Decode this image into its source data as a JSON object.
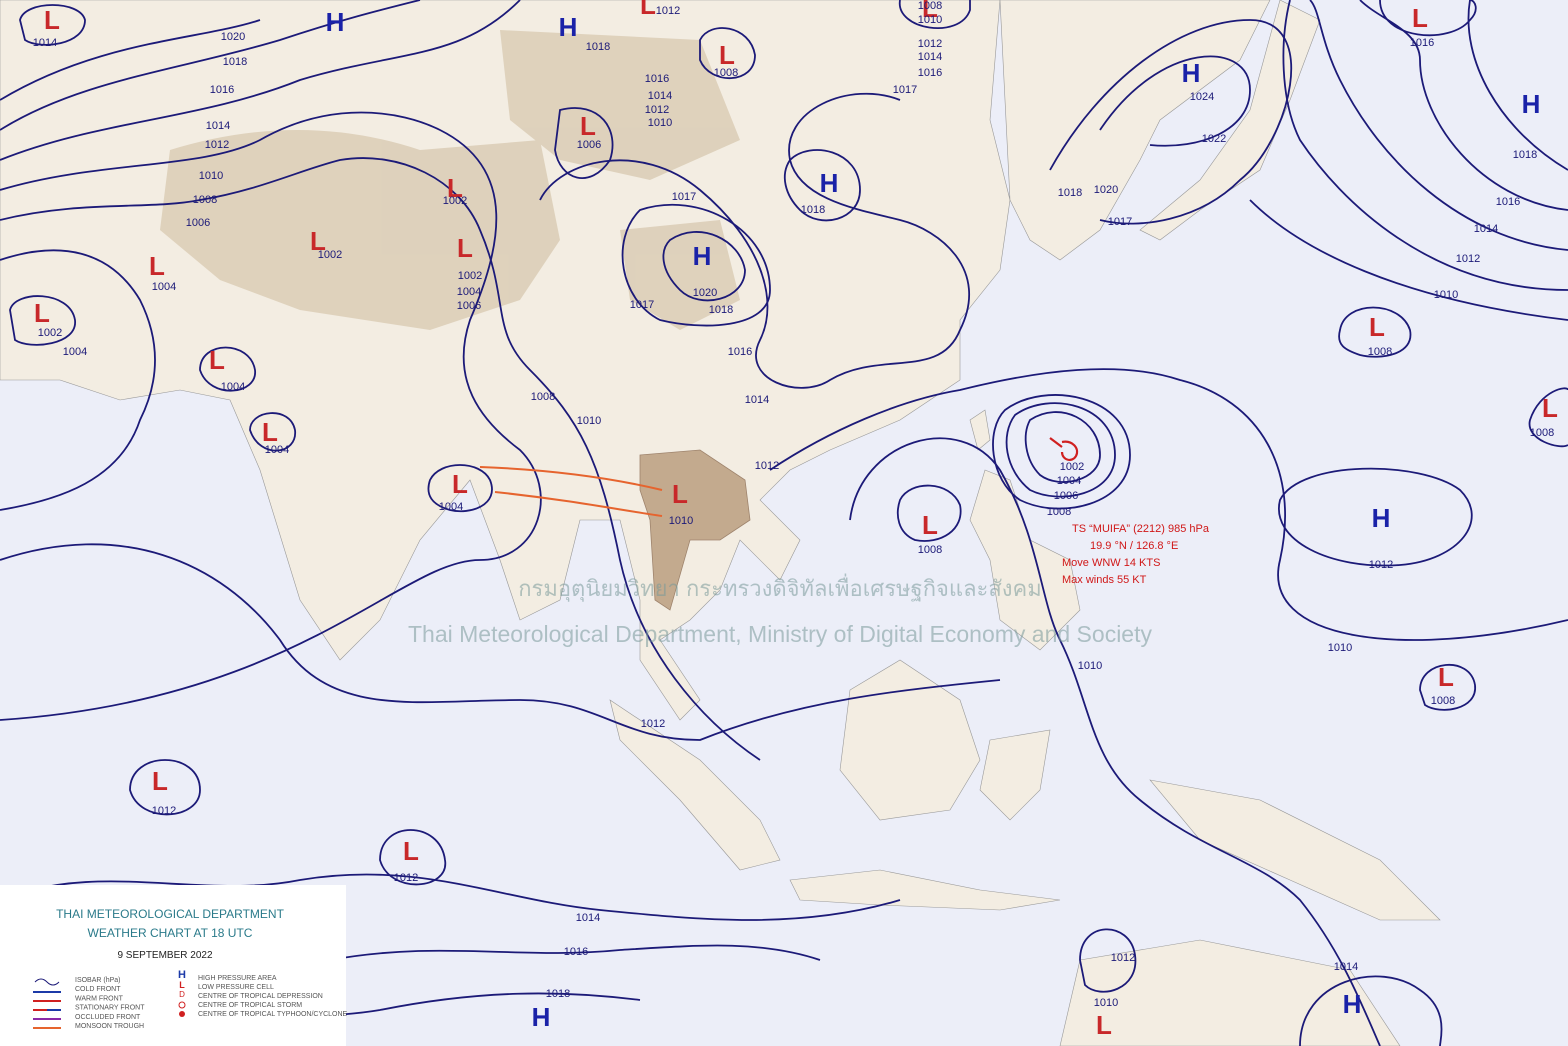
{
  "title": {
    "agency": "THAI METEOROLOGICAL DEPARTMENT",
    "chart": "WEATHER CHART AT  18  UTC",
    "date": "9  SEPTEMBER  2022"
  },
  "legend": {
    "left": [
      "ISOBAR (hPa)",
      "COLD FRONT",
      "WARM FRONT",
      "STATIONARY FRONT",
      "OCCLUDED FRONT",
      "MONSOON TROUGH"
    ],
    "right": [
      "HIGH PRESSURE AREA",
      "LOW PRESSURE CELL",
      "CENTRE OF TROPICAL DEPRESSION",
      "CENTRE OF TROPICAL STORM",
      "CENTRE OF TROPICAL TYPHOON/CYCLONE"
    ]
  },
  "watermark": [
    "กรมอุตุนิยมวิทยา กระทรวงดิจิทัลเพื่อเศรษฐกิจและสังคม",
    "Thai Meteorological Department, Ministry of Digital Economy and Society"
  ],
  "storm": [
    "TS “MUIFA” (2212) 985 hPa",
    "19.9 °N / 126.8 °E",
    "Move WNW 14 KTS",
    "Max winds 55 KT"
  ],
  "pressure_systems": [
    {
      "symbol": "L",
      "value": 1014
    },
    {
      "symbol": "H"
    },
    {
      "symbol": "H"
    },
    {
      "symbol": "L",
      "value": 1012
    },
    {
      "symbol": "L",
      "value": 1008
    },
    {
      "symbol": "L",
      "value": 1008
    },
    {
      "symbol": "L",
      "value": 1016
    },
    {
      "symbol": "H",
      "value": 1024
    },
    {
      "symbol": "H"
    },
    {
      "symbol": "L",
      "value": 1006
    },
    {
      "symbol": "L",
      "value": 1002
    },
    {
      "symbol": "H",
      "value": 1018
    },
    {
      "symbol": "H",
      "value": 1020
    },
    {
      "symbol": "L",
      "value": 1002
    },
    {
      "symbol": "L",
      "value": 1002
    },
    {
      "symbol": "L",
      "value": 1004
    },
    {
      "symbol": "L",
      "value": 1002
    },
    {
      "symbol": "L",
      "value": 1004
    },
    {
      "symbol": "L",
      "value": 1004
    },
    {
      "symbol": "L",
      "value": 1004
    },
    {
      "symbol": "L",
      "value": 1010
    },
    {
      "symbol": "L",
      "value": 1008
    },
    {
      "symbol": "L",
      "value": 1008
    },
    {
      "symbol": "L",
      "value": 1008
    },
    {
      "symbol": "H",
      "value": 1012
    },
    {
      "symbol": "L",
      "value": 1008
    },
    {
      "symbol": "L",
      "value": 1012
    },
    {
      "symbol": "L",
      "value": 1012
    },
    {
      "symbol": "H"
    },
    {
      "symbol": "L",
      "value": 1010
    },
    {
      "symbol": "H",
      "value": 1014
    }
  ],
  "isobar_labels": [
    1020,
    1018,
    1016,
    1014,
    1012,
    1010,
    1008,
    1006,
    1004,
    1018,
    1016,
    1014,
    1012,
    1010,
    1010,
    1012,
    1014,
    1016,
    1017,
    1017,
    1018,
    1017,
    1016,
    1014,
    1012,
    1004,
    1006,
    1008,
    1010,
    1022,
    1018,
    1020,
    1017,
    1018,
    1016,
    1014,
    1012,
    1010,
    1002,
    1004,
    1006,
    1008,
    1010,
    1012,
    1010,
    1014,
    1016,
    1018,
    1012
  ]
}
